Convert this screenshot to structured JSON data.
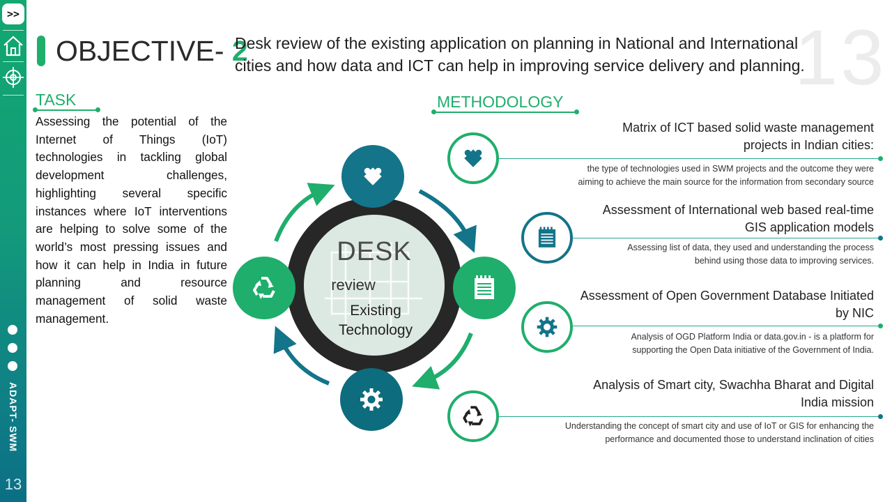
{
  "sidebar": {
    "toggle_label": ">>",
    "brand": "ADAPT- SWM",
    "page_number": "13"
  },
  "header": {
    "title_prefix": "OBJECTIVE-",
    "title_number": "2",
    "description": "Desk review of the existing application on planning in National and International cities and how data and ICT can help in improving service delivery and planning.",
    "slide_number": "13"
  },
  "task": {
    "heading": "TASK",
    "body": "Assessing the potential of the Internet of Things (IoT) technologies in tackling global development challenges, highlighting several specific instances where IoT interventions are helping to solve some of the world’s most pressing issues and how it can help in India in future planning and resource management of solid waste management."
  },
  "diagram": {
    "center_title": "DESK",
    "center_line1": "review",
    "center_line2": "Existing",
    "center_line3": "Technology",
    "nodes": [
      {
        "icon": "puzzle-icon",
        "color": "#13748a"
      },
      {
        "icon": "notepad-icon",
        "color": "#1fae6c"
      },
      {
        "icon": "gear-icon",
        "color": "#0d6c7d"
      },
      {
        "icon": "recycle-icon",
        "color": "#1fae6c"
      }
    ]
  },
  "methodology": {
    "heading": "METHODOLOGY",
    "items": [
      {
        "title_line1": "Matrix of ICT based solid waste management",
        "title_line2": "projects in Indian cities:",
        "desc_line1": "the type of technologies used in SWM projects and the outcome they were",
        "desc_line2": "aiming to achieve  the main source for the information from secondary source",
        "icon": "puzzle-icon",
        "color": "#1fae6c"
      },
      {
        "title_line1": "Assessment of International web based real-time",
        "title_line2": "GIS application models",
        "desc_line1": "Assessing list of data, they used and understanding the process",
        "desc_line2": "behind using those data to improving services.",
        "icon": "notepad-icon",
        "color": "#13748a"
      },
      {
        "title_line1": "Assessment of Open Government Database Initiated",
        "title_line2": "by NIC",
        "desc_line1": "Analysis of OGD Platform India or data.gov.in  - is a platform for",
        "desc_line2": "supporting the Open Data initiative  of the Government of India.",
        "icon": "gear-icon",
        "color": "#1fae6c"
      },
      {
        "title_line1": "Analysis of Smart city, Swachha Bharat and Digital",
        "title_line2": "India mission",
        "desc_line1": "Understanding the concept of smart city and use of IoT or GIS for enhancing the",
        "desc_line2": "performance and documented those to understand inclination  of cities",
        "icon": "recycle-icon",
        "color": "#13748a"
      }
    ]
  }
}
